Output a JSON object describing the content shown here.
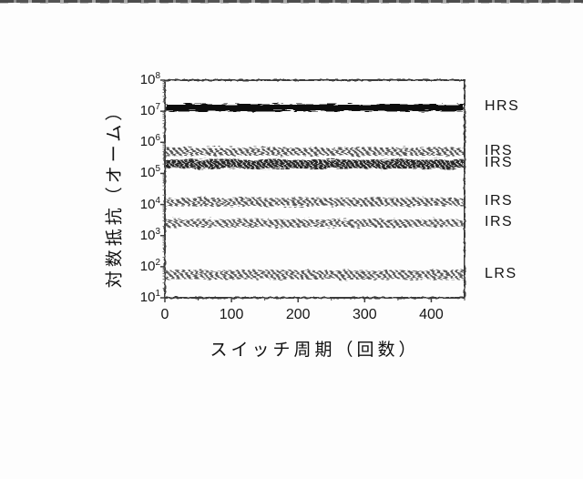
{
  "figure": {
    "description": "Scanned patent figure: resistance of memory cell states versus switching cycles",
    "background_color": "#fdfdfd",
    "scan_artifact_dark": "#4c4c4c",
    "scan_artifact_light": "#a8a8a8"
  },
  "chart_data": {
    "type": "scatter",
    "title": "",
    "xlabel": "スイッチ周期（回数）",
    "ylabel": "対数抵抗（オーム）",
    "x_range": [
      0,
      450
    ],
    "x_ticks": [
      0,
      100,
      200,
      300,
      400
    ],
    "x_minor_tick_step": 50,
    "y_scale": "log10",
    "y_exponent_range": [
      1,
      8
    ],
    "y_tick_exponents": [
      8,
      7,
      6,
      5,
      4,
      3,
      2,
      1
    ],
    "grid": false,
    "legend_position": "right",
    "frame_color": "#3a3a3a",
    "tick_color": "#3f3f3f",
    "text_color": "#171717",
    "series": [
      {
        "name": "HRS",
        "resistance_ohm": 13000000,
        "spread_decades": 0.22,
        "style": "solid",
        "color": "#0e0e0e"
      },
      {
        "name": "IRS",
        "resistance_ohm": 500000,
        "spread_decades": 0.27,
        "style": "hatch",
        "color": "#565656"
      },
      {
        "name": "IRS",
        "resistance_ohm": 200000,
        "spread_decades": 0.29,
        "style": "hatch-dense",
        "color": "#262626"
      },
      {
        "name": "IRS",
        "resistance_ohm": 12000,
        "spread_decades": 0.27,
        "style": "hatch",
        "color": "#585858"
      },
      {
        "name": "IRS",
        "resistance_ohm": 2500,
        "spread_decades": 0.26,
        "style": "hatch",
        "color": "#5c5c5c"
      },
      {
        "name": "LRS",
        "resistance_ohm": 55,
        "spread_decades": 0.3,
        "style": "hatch",
        "color": "#5a5a5a"
      }
    ]
  }
}
